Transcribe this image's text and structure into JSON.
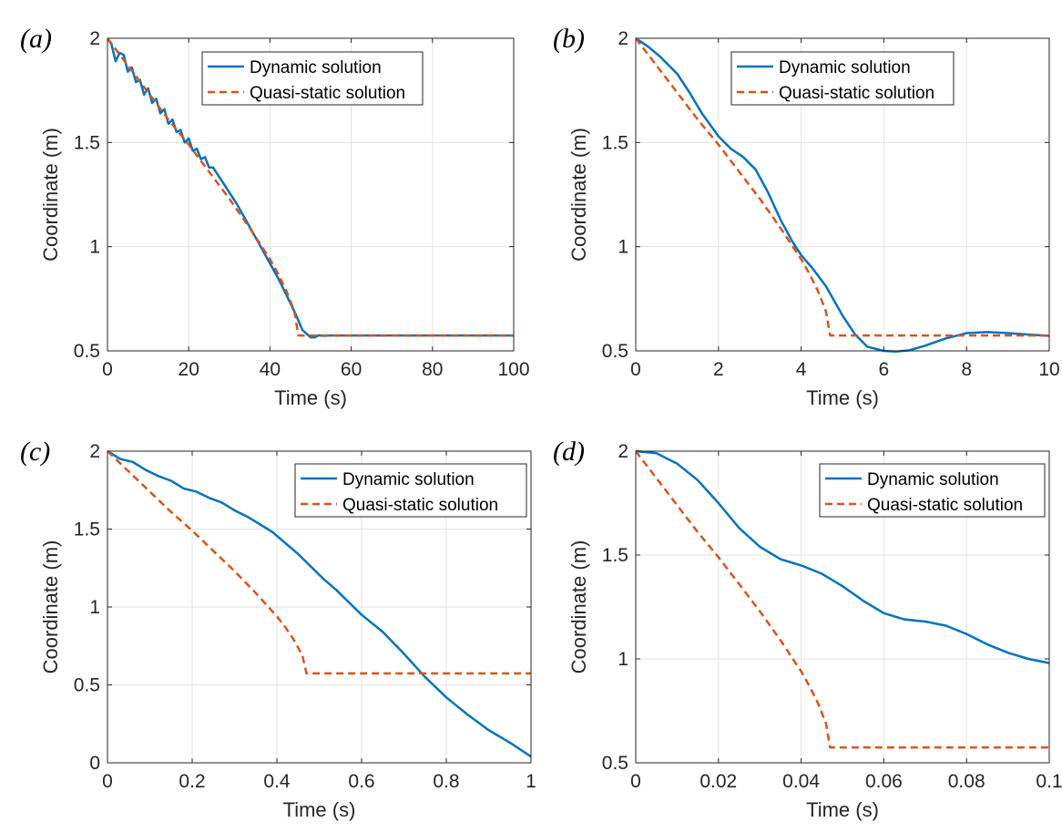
{
  "chart_data": [
    {
      "type": "line",
      "panel_label": "(a)",
      "xlabel": "Time (s)",
      "ylabel": "Coordinate (m)",
      "xlim": [
        0,
        100
      ],
      "ylim": [
        0.5,
        2
      ],
      "xticks": [
        0,
        20,
        40,
        60,
        80,
        100
      ],
      "xtick_labels": [
        "0",
        "20",
        "40",
        "60",
        "80",
        "100"
      ],
      "yticks": [
        0.5,
        1,
        1.5,
        2
      ],
      "ytick_labels": [
        "0.5",
        "1",
        "1.5",
        "2"
      ],
      "grid": true,
      "legend_position": "top-right",
      "series": [
        {
          "name": "Dynamic solution",
          "color": "#0072BD",
          "style": "solid",
          "x": [
            0,
            1,
            2,
            3,
            4,
            5,
            6,
            7,
            8,
            9,
            10,
            11,
            12,
            13,
            14,
            15,
            16,
            17,
            18,
            19,
            20,
            21,
            22,
            23,
            24,
            25,
            26,
            28,
            30,
            32,
            34,
            36,
            38,
            40,
            42,
            44,
            46,
            48,
            50,
            51,
            52,
            53,
            55,
            60,
            70,
            80,
            90,
            100
          ],
          "values": [
            2.0,
            1.97,
            1.89,
            1.93,
            1.92,
            1.84,
            1.86,
            1.79,
            1.8,
            1.73,
            1.76,
            1.69,
            1.71,
            1.64,
            1.66,
            1.59,
            1.61,
            1.55,
            1.56,
            1.5,
            1.52,
            1.46,
            1.47,
            1.42,
            1.43,
            1.38,
            1.38,
            1.32,
            1.26,
            1.2,
            1.13,
            1.06,
            0.99,
            0.92,
            0.85,
            0.77,
            0.69,
            0.6,
            0.565,
            0.565,
            0.575,
            0.572,
            0.574,
            0.574,
            0.574,
            0.574,
            0.574,
            0.574
          ]
        },
        {
          "name": "Quasi-static solution",
          "color": "#D95319",
          "style": "dashed",
          "x": [
            0,
            5,
            10,
            15,
            20,
            25,
            30,
            35,
            40,
            42,
            44,
            46,
            47,
            100
          ],
          "values": [
            2.0,
            1.87,
            1.74,
            1.61,
            1.49,
            1.36,
            1.23,
            1.09,
            0.94,
            0.87,
            0.79,
            0.69,
            0.574,
            0.574
          ]
        }
      ]
    },
    {
      "type": "line",
      "panel_label": "(b)",
      "xlabel": "Time (s)",
      "ylabel": "Coordinate (m)",
      "xlim": [
        0,
        10
      ],
      "ylim": [
        0.5,
        2
      ],
      "xticks": [
        0,
        2,
        4,
        6,
        8,
        10
      ],
      "xtick_labels": [
        "0",
        "2",
        "4",
        "6",
        "8",
        "10"
      ],
      "yticks": [
        0.5,
        1,
        1.5,
        2
      ],
      "ytick_labels": [
        "0.5",
        "1",
        "1.5",
        "2"
      ],
      "grid": true,
      "legend_position": "top-right",
      "series": [
        {
          "name": "Dynamic solution",
          "color": "#0072BD",
          "style": "solid",
          "x": [
            0,
            0.3,
            0.6,
            1.0,
            1.3,
            1.6,
            2.0,
            2.3,
            2.6,
            2.9,
            3.2,
            3.5,
            3.8,
            4.0,
            4.3,
            4.6,
            5.0,
            5.3,
            5.6,
            6.0,
            6.3,
            6.6,
            7.0,
            7.5,
            8.0,
            8.5,
            9.0,
            9.5,
            10.0
          ],
          "values": [
            2.0,
            1.96,
            1.91,
            1.83,
            1.74,
            1.64,
            1.53,
            1.47,
            1.43,
            1.37,
            1.26,
            1.13,
            1.02,
            0.96,
            0.89,
            0.81,
            0.67,
            0.58,
            0.52,
            0.5,
            0.497,
            0.502,
            0.525,
            0.56,
            0.585,
            0.59,
            0.585,
            0.578,
            0.572
          ]
        },
        {
          "name": "Quasi-static solution",
          "color": "#D95319",
          "style": "dashed",
          "x": [
            0,
            0.5,
            1.0,
            1.5,
            2.0,
            2.5,
            3.0,
            3.5,
            4.0,
            4.2,
            4.4,
            4.6,
            4.7,
            10.0
          ],
          "values": [
            2.0,
            1.87,
            1.74,
            1.61,
            1.49,
            1.36,
            1.23,
            1.09,
            0.94,
            0.87,
            0.79,
            0.69,
            0.574,
            0.574
          ]
        }
      ]
    },
    {
      "type": "line",
      "panel_label": "(c)",
      "xlabel": "Time (s)",
      "ylabel": "Coordinate (m)",
      "xlim": [
        0,
        1
      ],
      "ylim": [
        0,
        2
      ],
      "xticks": [
        0,
        0.2,
        0.4,
        0.6,
        0.8,
        1
      ],
      "xtick_labels": [
        "0",
        "0.2",
        "0.4",
        "0.6",
        "0.8",
        "1"
      ],
      "yticks": [
        0,
        0.5,
        1,
        1.5,
        2
      ],
      "ytick_labels": [
        "0",
        "0.5",
        "1",
        "1.5",
        "2"
      ],
      "grid": true,
      "legend_position": "top-right",
      "series": [
        {
          "name": "Dynamic solution",
          "color": "#0072BD",
          "style": "solid",
          "x": [
            0,
            0.03,
            0.06,
            0.09,
            0.12,
            0.15,
            0.18,
            0.21,
            0.24,
            0.27,
            0.3,
            0.33,
            0.36,
            0.39,
            0.42,
            0.45,
            0.48,
            0.51,
            0.54,
            0.57,
            0.6,
            0.65,
            0.7,
            0.75,
            0.8,
            0.85,
            0.9,
            0.95,
            1.0
          ],
          "values": [
            2.0,
            1.95,
            1.93,
            1.88,
            1.84,
            1.81,
            1.76,
            1.74,
            1.7,
            1.67,
            1.62,
            1.58,
            1.53,
            1.48,
            1.41,
            1.34,
            1.26,
            1.18,
            1.11,
            1.03,
            0.95,
            0.84,
            0.7,
            0.55,
            0.42,
            0.31,
            0.21,
            0.13,
            0.04
          ]
        },
        {
          "name": "Quasi-static solution",
          "color": "#D95319",
          "style": "dashed",
          "x": [
            0,
            0.05,
            0.1,
            0.15,
            0.2,
            0.25,
            0.3,
            0.35,
            0.4,
            0.42,
            0.44,
            0.46,
            0.47,
            1.0
          ],
          "values": [
            2.0,
            1.87,
            1.74,
            1.61,
            1.49,
            1.36,
            1.23,
            1.09,
            0.94,
            0.87,
            0.79,
            0.69,
            0.574,
            0.574
          ]
        }
      ]
    },
    {
      "type": "line",
      "panel_label": "(d)",
      "xlabel": "Time (s)",
      "ylabel": "Coordinate (m)",
      "xlim": [
        0,
        0.1
      ],
      "ylim": [
        0.5,
        2
      ],
      "xticks": [
        0,
        0.02,
        0.04,
        0.06,
        0.08,
        0.1
      ],
      "xtick_labels": [
        "0",
        "0.02",
        "0.04",
        "0.06",
        "0.08",
        "0.1"
      ],
      "yticks": [
        0.5,
        1,
        1.5,
        2
      ],
      "ytick_labels": [
        "0.5",
        "1",
        "1.5",
        "2"
      ],
      "grid": true,
      "legend_position": "top-right",
      "series": [
        {
          "name": "Dynamic solution",
          "color": "#0072BD",
          "style": "solid",
          "x": [
            0,
            0.005,
            0.01,
            0.015,
            0.02,
            0.025,
            0.03,
            0.035,
            0.04,
            0.045,
            0.05,
            0.055,
            0.06,
            0.065,
            0.07,
            0.075,
            0.08,
            0.085,
            0.09,
            0.095,
            0.1
          ],
          "values": [
            2.0,
            1.99,
            1.94,
            1.86,
            1.75,
            1.63,
            1.54,
            1.48,
            1.45,
            1.41,
            1.35,
            1.28,
            1.22,
            1.19,
            1.18,
            1.16,
            1.12,
            1.07,
            1.03,
            1.0,
            0.98
          ]
        },
        {
          "name": "Quasi-static solution",
          "color": "#D95319",
          "style": "dashed",
          "x": [
            0,
            0.005,
            0.01,
            0.015,
            0.02,
            0.025,
            0.03,
            0.035,
            0.04,
            0.042,
            0.044,
            0.046,
            0.047,
            0.1
          ],
          "values": [
            2.0,
            1.87,
            1.74,
            1.61,
            1.49,
            1.36,
            1.23,
            1.09,
            0.94,
            0.87,
            0.79,
            0.69,
            0.574,
            0.574
          ]
        }
      ]
    }
  ]
}
